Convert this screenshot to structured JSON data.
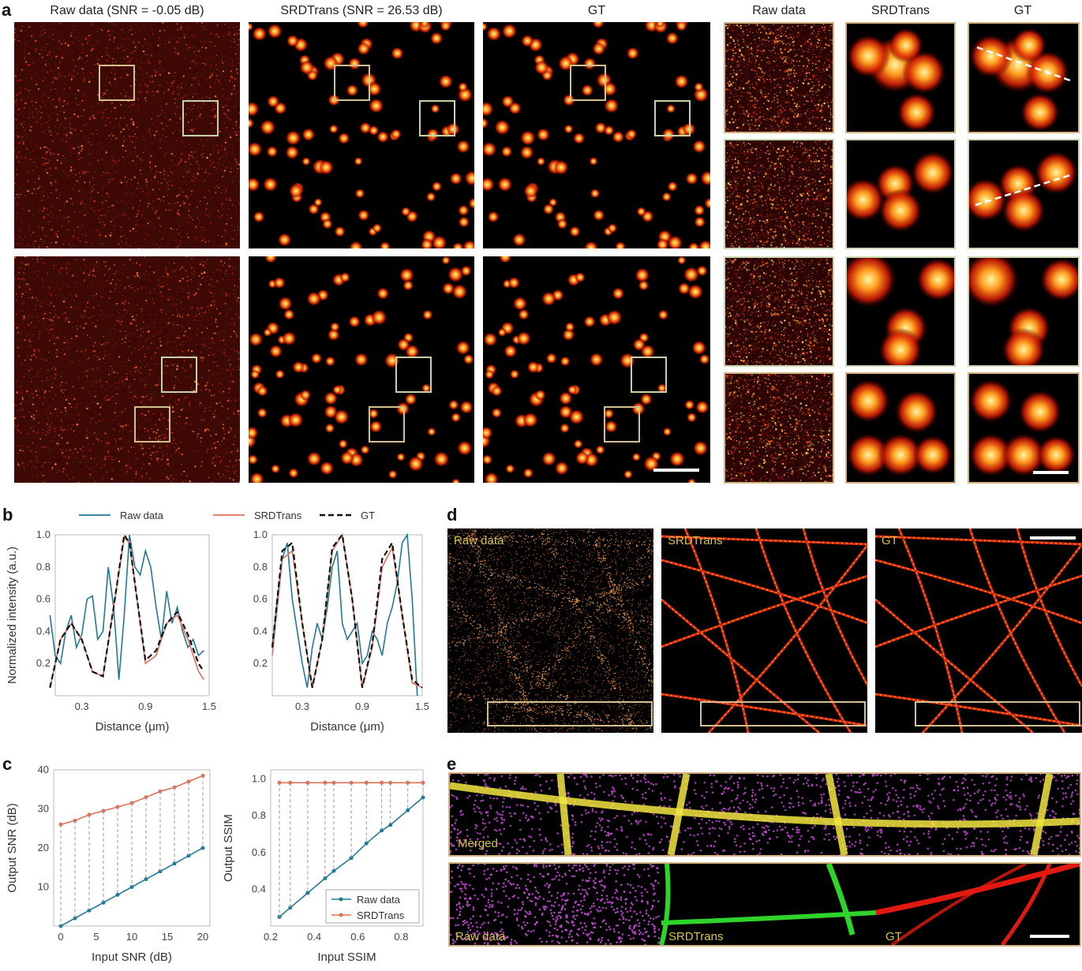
{
  "panels": {
    "a": "a",
    "b": "b",
    "c": "c",
    "d": "d",
    "e": "e"
  },
  "panel_a": {
    "titles": [
      "Raw data (SNR = -0.05 dB)",
      "SRDTrans (SNR = 26.53 dB)",
      "GT"
    ],
    "zoom_titles": [
      "Raw data",
      "SRDTrans",
      "GT"
    ]
  },
  "panel_d": {
    "labels": [
      "Raw data",
      "SRDTrans",
      "GT"
    ]
  },
  "panel_e": {
    "merged": "Merged",
    "labels": [
      "Raw data",
      "SRDTrans",
      "GT"
    ]
  },
  "colors": {
    "raw": "#1f7a96",
    "srdtrans": "#e0705a",
    "gt": "#111111",
    "frame": "#d3b382"
  },
  "chart_data": [
    {
      "type": "line",
      "panel": "b-left",
      "legend": [
        "Raw data",
        "SRDTrans",
        "GT"
      ],
      "ylabel": "Normalized intensity (a.u.)",
      "xlabel": "Distance (μm)",
      "xticks": [
        "0.3",
        "0.9",
        "1.5"
      ],
      "yticks": [
        "0.2",
        "0.4",
        "0.6",
        "0.8",
        "1.0"
      ],
      "xlim": [
        0,
        1.5
      ],
      "ylim": [
        0,
        1.0
      ],
      "series": [
        {
          "name": "Raw data",
          "x": [
            0,
            0.05,
            0.1,
            0.15,
            0.2,
            0.25,
            0.3,
            0.35,
            0.4,
            0.45,
            0.5,
            0.55,
            0.6,
            0.65,
            0.7,
            0.75,
            0.8,
            0.85,
            0.9,
            0.95,
            1.0,
            1.05,
            1.1,
            1.15,
            1.2,
            1.25,
            1.3,
            1.35,
            1.4,
            1.45
          ],
          "y": [
            0.5,
            0.25,
            0.2,
            0.4,
            0.5,
            0.3,
            0.38,
            0.6,
            0.62,
            0.35,
            0.4,
            0.8,
            0.55,
            0.1,
            0.5,
            1.0,
            0.8,
            0.75,
            0.9,
            0.8,
            0.55,
            0.35,
            0.65,
            0.45,
            0.55,
            0.4,
            0.3,
            0.35,
            0.25,
            0.28
          ]
        },
        {
          "name": "SRDTrans",
          "x": [
            0,
            0.1,
            0.2,
            0.3,
            0.4,
            0.5,
            0.6,
            0.7,
            0.75,
            0.8,
            0.9,
            1.0,
            1.1,
            1.2,
            1.3,
            1.4,
            1.45
          ],
          "y": [
            0.05,
            0.35,
            0.45,
            0.35,
            0.15,
            0.12,
            0.55,
            0.98,
            0.95,
            0.7,
            0.2,
            0.25,
            0.45,
            0.5,
            0.35,
            0.15,
            0.1
          ]
        },
        {
          "name": "GT",
          "x": [
            0,
            0.1,
            0.2,
            0.3,
            0.4,
            0.5,
            0.6,
            0.7,
            0.75,
            0.8,
            0.9,
            1.0,
            1.1,
            1.2,
            1.3,
            1.4,
            1.45
          ],
          "y": [
            0.05,
            0.35,
            0.45,
            0.35,
            0.15,
            0.12,
            0.55,
            1.0,
            0.95,
            0.7,
            0.22,
            0.28,
            0.45,
            0.52,
            0.38,
            0.2,
            0.15
          ]
        }
      ]
    },
    {
      "type": "line",
      "panel": "b-right",
      "xlabel": "Distance (μm)",
      "xticks": [
        "0.3",
        "0.9",
        "1.5"
      ],
      "yticks": [
        "0.2",
        "0.4",
        "0.6",
        "0.8",
        "1.0"
      ],
      "xlim": [
        0,
        1.5
      ],
      "ylim": [
        0,
        1.0
      ],
      "series": [
        {
          "name": "Raw data",
          "x": [
            0,
            0.05,
            0.1,
            0.15,
            0.2,
            0.25,
            0.3,
            0.35,
            0.4,
            0.45,
            0.5,
            0.55,
            0.6,
            0.65,
            0.7,
            0.75,
            0.8,
            0.85,
            0.9,
            0.95,
            1.0,
            1.05,
            1.1,
            1.15,
            1.2,
            1.25,
            1.3,
            1.35,
            1.4,
            1.45
          ],
          "y": [
            0.3,
            0.6,
            0.85,
            0.95,
            0.6,
            0.4,
            0.2,
            0.05,
            0.3,
            0.45,
            0.35,
            0.55,
            0.8,
            0.9,
            0.45,
            0.35,
            0.4,
            0.45,
            0.2,
            0.25,
            0.4,
            0.35,
            0.25,
            0.45,
            0.55,
            0.7,
            0.95,
            1.0,
            0.6,
            0.0
          ]
        },
        {
          "name": "SRDTrans",
          "x": [
            0,
            0.1,
            0.2,
            0.3,
            0.4,
            0.5,
            0.6,
            0.7,
            0.8,
            0.9,
            1.0,
            1.1,
            1.2,
            1.3,
            1.4,
            1.5
          ],
          "y": [
            0.25,
            0.85,
            0.9,
            0.45,
            0.05,
            0.35,
            0.9,
            1.0,
            0.6,
            0.05,
            0.3,
            0.8,
            0.92,
            0.5,
            0.08,
            0.05
          ]
        },
        {
          "name": "GT",
          "x": [
            0,
            0.1,
            0.2,
            0.3,
            0.4,
            0.5,
            0.6,
            0.7,
            0.8,
            0.9,
            1.0,
            1.1,
            1.2,
            1.3,
            1.4,
            1.5
          ],
          "y": [
            0.3,
            0.9,
            0.95,
            0.45,
            0.05,
            0.35,
            0.92,
            1.0,
            0.6,
            0.05,
            0.32,
            0.85,
            0.95,
            0.5,
            0.1,
            0.05
          ]
        }
      ]
    },
    {
      "type": "line",
      "panel": "c-left",
      "xlabel": "Input SNR (dB)",
      "ylabel": "Output SNR (dB)",
      "xticks": [
        "0",
        "5",
        "10",
        "15",
        "20"
      ],
      "yticks": [
        "10",
        "20",
        "30",
        "40"
      ],
      "xlim": [
        -1,
        21
      ],
      "ylim": [
        0,
        40
      ],
      "series": [
        {
          "name": "Raw data",
          "x": [
            0,
            2,
            4,
            6,
            8,
            10,
            12,
            14,
            16,
            18,
            20
          ],
          "y": [
            0,
            2,
            4,
            6,
            8,
            10,
            12,
            14,
            16,
            18,
            20
          ]
        },
        {
          "name": "SRDTrans",
          "x": [
            0,
            2,
            4,
            6,
            8,
            10,
            12,
            14,
            16,
            18,
            20
          ],
          "y": [
            26,
            27,
            28.5,
            29.5,
            30.5,
            31.5,
            33,
            34.5,
            35.5,
            37,
            38.5
          ]
        }
      ]
    },
    {
      "type": "line",
      "panel": "c-right",
      "xlabel": "Input SSIM",
      "ylabel": "Output SSIM",
      "xticks": [
        "0.2",
        "0.4",
        "0.6",
        "0.8"
      ],
      "yticks": [
        "0.4",
        "0.6",
        "0.8",
        "1.0"
      ],
      "xlim": [
        0.2,
        0.9
      ],
      "ylim": [
        0.2,
        1.05
      ],
      "legend": [
        "Raw data",
        "SRDTrans"
      ],
      "series": [
        {
          "name": "Raw data",
          "x": [
            0.24,
            0.29,
            0.37,
            0.45,
            0.49,
            0.57,
            0.64,
            0.71,
            0.75,
            0.83,
            0.9
          ],
          "y": [
            0.25,
            0.3,
            0.38,
            0.46,
            0.5,
            0.57,
            0.65,
            0.72,
            0.75,
            0.83,
            0.9
          ]
        },
        {
          "name": "SRDTrans",
          "x": [
            0.24,
            0.29,
            0.37,
            0.45,
            0.49,
            0.57,
            0.64,
            0.71,
            0.75,
            0.83,
            0.9
          ],
          "y": [
            0.98,
            0.98,
            0.98,
            0.98,
            0.98,
            0.98,
            0.98,
            0.98,
            0.98,
            0.98,
            0.98
          ]
        }
      ]
    }
  ]
}
